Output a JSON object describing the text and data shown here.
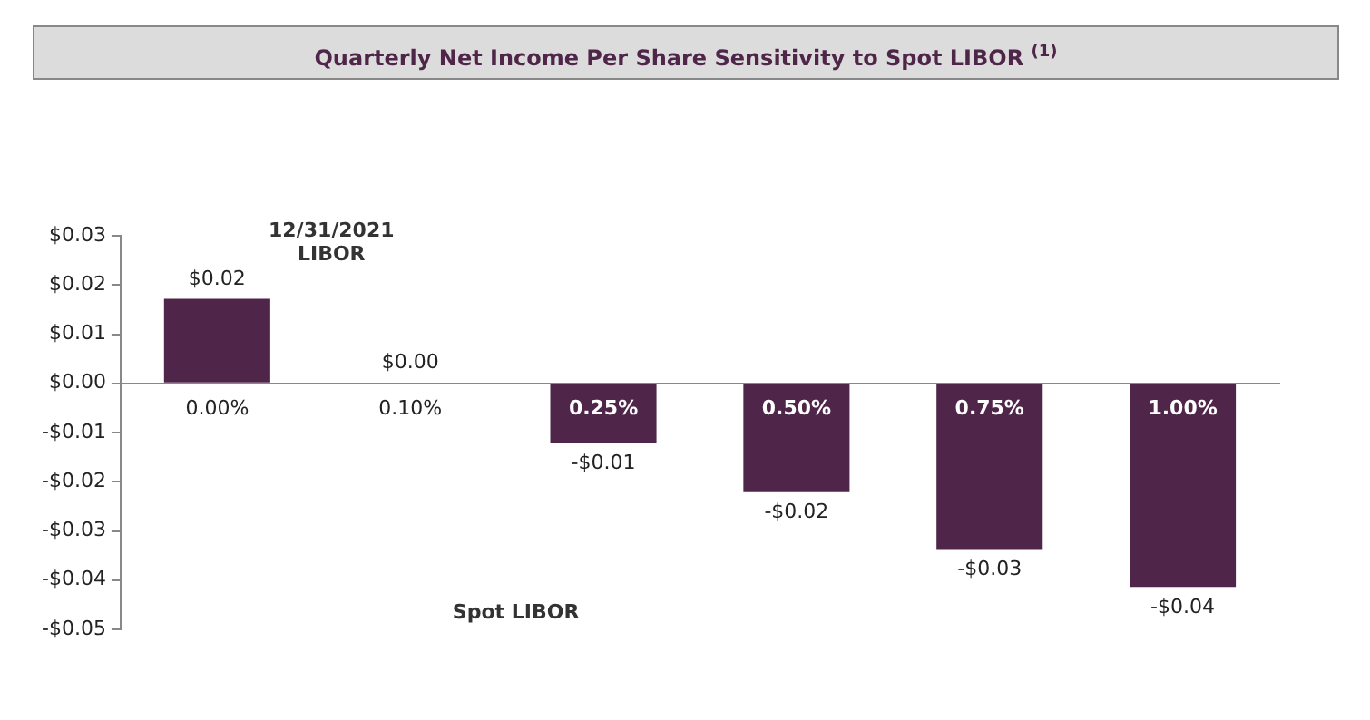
{
  "chart_data": {
    "type": "bar",
    "title": "Quarterly Net Income Per Share Sensitivity to Spot LIBOR $^{(1)}$",
    "xlabel": "Spot LIBOR",
    "categories": [
      "0.00%",
      "0.10%",
      "0.25%",
      "0.50%",
      "0.75%",
      "1.00%"
    ],
    "values": [
      0.0172,
      0.0002,
      -0.0121,
      -0.0221,
      -0.0337,
      -0.0414
    ],
    "value_labels": [
      "$0.02",
      "$0.00",
      "-$0.01",
      "-$0.02",
      "-$0.03",
      "-$0.04"
    ],
    "color": "#4f2649",
    "ylim": [
      -0.05,
      0.03
    ],
    "yticks": [
      {
        "value": 0.03,
        "label": "$0.03"
      },
      {
        "value": 0.02,
        "label": "$0.02"
      },
      {
        "value": 0.01,
        "label": "$0.01"
      },
      {
        "value": 0,
        "label": "$0.00"
      },
      {
        "value": -0.01,
        "label": "-$0.01"
      },
      {
        "value": -0.02,
        "label": "-$0.02"
      },
      {
        "value": -0.03,
        "label": "-$0.03"
      },
      {
        "value": -0.04,
        "label": "-$0.04"
      },
      {
        "value": -0.05,
        "label": "-$0.05"
      }
    ],
    "annotations": [
      "12/31/2021\nLIBOR"
    ],
    "grid": false,
    "legend": false
  }
}
